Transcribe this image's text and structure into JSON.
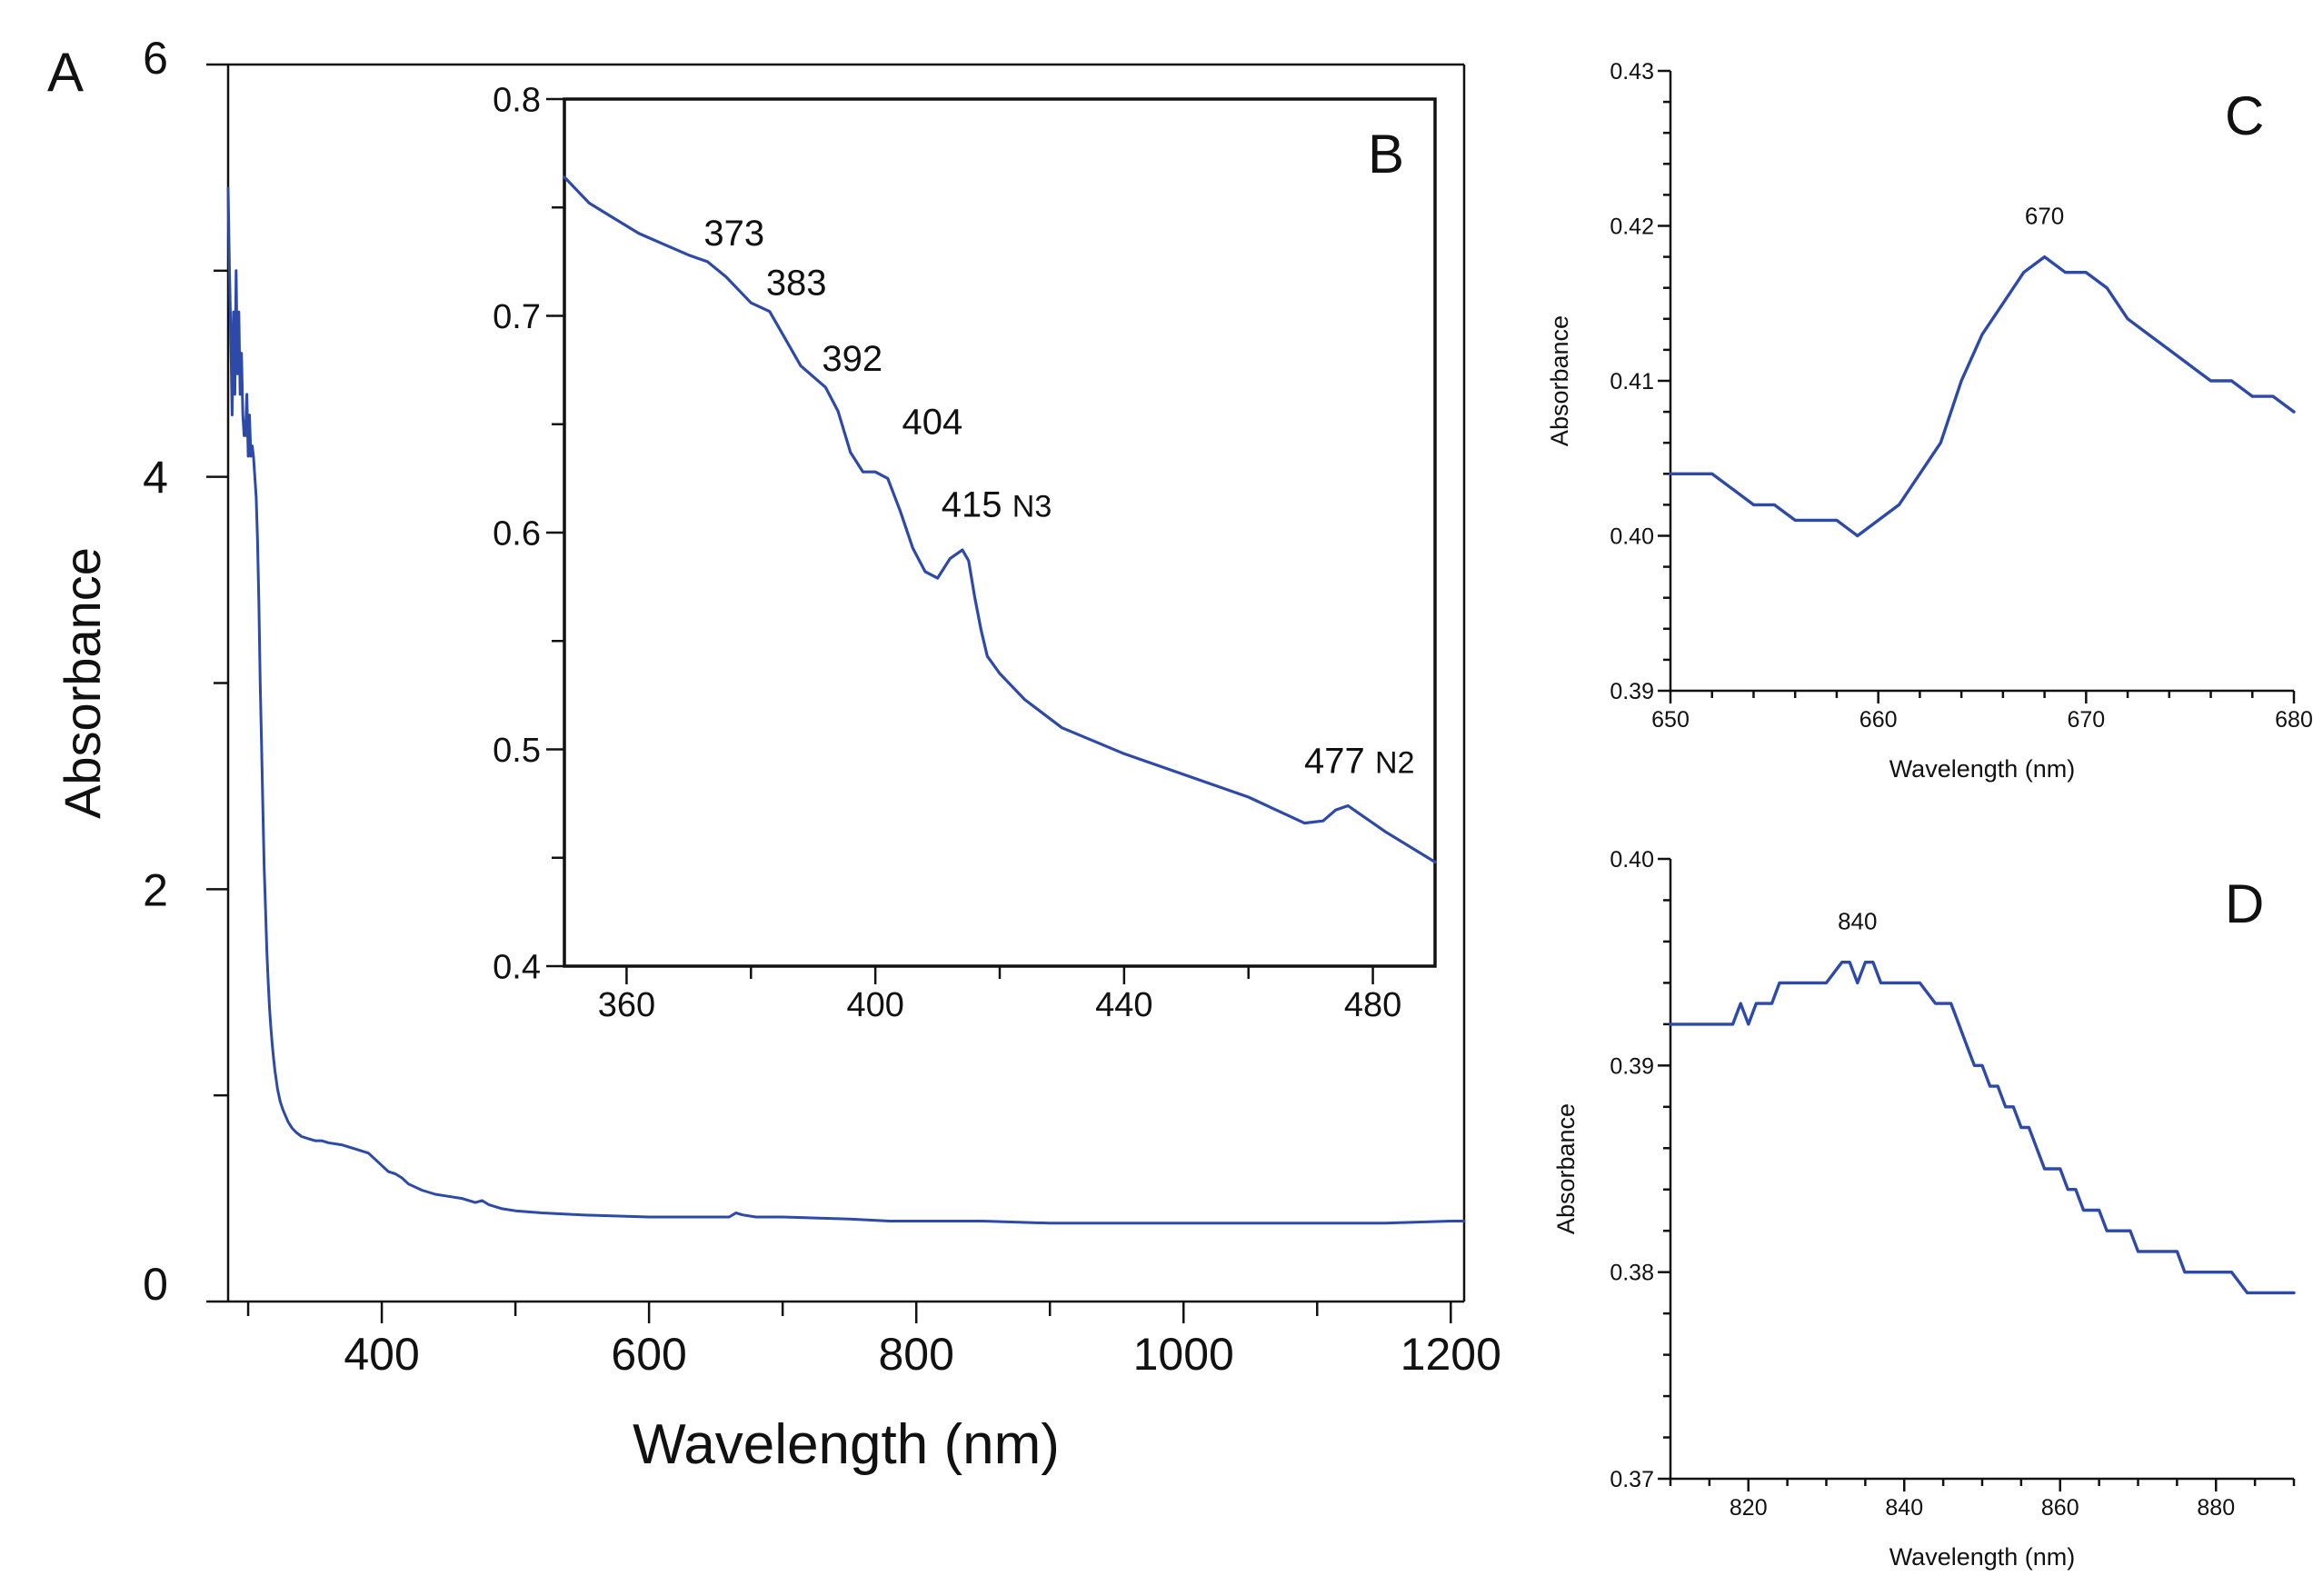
{
  "colors": {
    "series": "#2e4aa8",
    "axis": "#111111"
  },
  "chart_data": [
    {
      "id": "A",
      "type": "line",
      "panel_label": "A",
      "xlabel": "Wavelength (nm)",
      "ylabel": "Absorbance",
      "xlim": [
        285,
        1210
      ],
      "ylim": [
        0,
        6
      ],
      "xticks": [
        400,
        600,
        800,
        1000,
        1200
      ],
      "xminor": [
        300,
        500,
        700,
        900,
        1100
      ],
      "yticks": [
        0,
        2,
        4,
        6
      ],
      "yminor": [
        1,
        3,
        5
      ],
      "series": [
        {
          "name": "absorbance",
          "x": [
            285,
            286,
            287,
            288,
            289,
            290,
            291,
            292,
            293,
            294,
            295,
            296,
            297,
            298,
            299,
            300,
            301,
            302,
            303,
            304,
            305,
            306,
            307,
            308,
            309,
            310,
            311,
            312,
            313,
            314,
            315,
            316,
            317,
            318,
            319,
            320,
            322,
            324,
            326,
            328,
            330,
            333,
            336,
            340,
            345,
            350,
            355,
            360,
            370,
            380,
            390,
            400,
            405,
            410,
            415,
            420,
            430,
            440,
            450,
            460,
            470,
            475,
            480,
            490,
            500,
            520,
            550,
            600,
            650,
            660,
            665,
            670,
            680,
            700,
            750,
            780,
            800,
            850,
            900,
            1000,
            1100,
            1150,
            1200,
            1210
          ],
          "y": [
            5.4,
            5.0,
            4.7,
            4.3,
            4.8,
            4.4,
            5.0,
            4.5,
            4.8,
            4.4,
            4.6,
            4.3,
            4.2,
            4.2,
            4.4,
            4.1,
            4.3,
            4.1,
            4.15,
            4.1,
            4.0,
            3.9,
            3.7,
            3.4,
            3.0,
            2.7,
            2.4,
            2.1,
            1.9,
            1.7,
            1.55,
            1.42,
            1.33,
            1.25,
            1.18,
            1.12,
            1.03,
            0.97,
            0.93,
            0.9,
            0.87,
            0.84,
            0.82,
            0.8,
            0.79,
            0.78,
            0.78,
            0.77,
            0.76,
            0.74,
            0.72,
            0.66,
            0.63,
            0.62,
            0.6,
            0.57,
            0.54,
            0.52,
            0.51,
            0.5,
            0.48,
            0.49,
            0.47,
            0.45,
            0.44,
            0.43,
            0.42,
            0.41,
            0.41,
            0.41,
            0.43,
            0.42,
            0.41,
            0.41,
            0.4,
            0.39,
            0.39,
            0.39,
            0.38,
            0.38,
            0.38,
            0.38,
            0.39,
            0.39
          ]
        }
      ]
    },
    {
      "id": "B",
      "type": "line",
      "panel_label": "B",
      "xlabel": "",
      "ylabel": "",
      "xlim": [
        350,
        490
      ],
      "ylim": [
        0.4,
        0.8
      ],
      "xticks": [
        360,
        400,
        440,
        480
      ],
      "xminor": [
        380,
        420,
        460
      ],
      "yticks": [
        0.4,
        0.5,
        0.6,
        0.7,
        0.8
      ],
      "ytick_labels": [
        "0.4",
        "0.5",
        "0.6",
        "0.7",
        "0.8"
      ],
      "yminor": [
        0.45,
        0.55,
        0.65,
        0.75
      ],
      "series": [
        {
          "name": "absorbance",
          "x": [
            350,
            354,
            358,
            362,
            366,
            370,
            373,
            376,
            380,
            383,
            385,
            388,
            392,
            394,
            396,
            398,
            400,
            402,
            404,
            406,
            408,
            410,
            412,
            414,
            415,
            416,
            417,
            418,
            420,
            424,
            430,
            440,
            450,
            460,
            466,
            469,
            472,
            474,
            476,
            478,
            482,
            490
          ],
          "y": [
            0.764,
            0.752,
            0.745,
            0.738,
            0.733,
            0.728,
            0.725,
            0.718,
            0.706,
            0.702,
            0.692,
            0.677,
            0.667,
            0.656,
            0.637,
            0.628,
            0.628,
            0.625,
            0.61,
            0.593,
            0.582,
            0.579,
            0.588,
            0.592,
            0.587,
            0.57,
            0.555,
            0.543,
            0.535,
            0.523,
            0.51,
            0.498,
            0.488,
            0.478,
            0.47,
            0.466,
            0.467,
            0.472,
            0.474,
            0.47,
            0.462,
            0.448
          ]
        }
      ],
      "annotations": [
        {
          "x": 373,
          "y": 0.725,
          "text": "373"
        },
        {
          "x": 383,
          "y": 0.702,
          "text": "383"
        },
        {
          "x": 392,
          "y": 0.667,
          "text": "392"
        },
        {
          "x": 404,
          "y": 0.633,
          "text": "404"
        },
        {
          "x": 415,
          "y": 0.594,
          "text": "415",
          "suffix": "N3"
        },
        {
          "x": 477,
          "y": 0.474,
          "text": "477",
          "suffix": "N2"
        }
      ]
    },
    {
      "id": "C",
      "type": "line",
      "panel_label": "C",
      "xlabel": "Wavelength (nm)",
      "ylabel": "Absorbance",
      "xlim": [
        650,
        680
      ],
      "ylim": [
        0.39,
        0.43
      ],
      "xticks": [
        650,
        660,
        670,
        680
      ],
      "xminor": [
        652,
        654,
        656,
        658,
        662,
        664,
        666,
        668,
        672,
        674,
        676,
        678
      ],
      "yticks": [
        0.39,
        0.4,
        0.41,
        0.42,
        0.43
      ],
      "ytick_labels": [
        "0.39",
        "0.40",
        "0.41",
        "0.42",
        "0.43"
      ],
      "yminor": [
        0.392,
        0.394,
        0.396,
        0.398,
        0.402,
        0.404,
        0.406,
        0.408,
        0.412,
        0.414,
        0.416,
        0.418,
        0.422,
        0.424,
        0.426,
        0.428
      ],
      "series": [
        {
          "name": "absorbance",
          "x": [
            650,
            651,
            652,
            653,
            654,
            655,
            656,
            657,
            658,
            659,
            660,
            661,
            662,
            663,
            664,
            665,
            666,
            667,
            668,
            669,
            670,
            671,
            672,
            673,
            674,
            675,
            676,
            677,
            678,
            679,
            680
          ],
          "y": [
            0.404,
            0.404,
            0.404,
            0.403,
            0.402,
            0.402,
            0.401,
            0.401,
            0.401,
            0.4,
            0.401,
            0.402,
            0.404,
            0.406,
            0.41,
            0.413,
            0.415,
            0.417,
            0.418,
            0.417,
            0.417,
            0.416,
            0.414,
            0.413,
            0.412,
            0.411,
            0.41,
            0.41,
            0.409,
            0.409,
            0.408
          ]
        }
      ],
      "annotations": [
        {
          "x": 668,
          "y": 0.418,
          "text": "670"
        }
      ]
    },
    {
      "id": "D",
      "type": "line",
      "panel_label": "D",
      "xlabel": "Wavelength (nm)",
      "ylabel": "Absorbance",
      "xlim": [
        810,
        890
      ],
      "ylim": [
        0.37,
        0.4
      ],
      "xticks": [
        820,
        840,
        860,
        880
      ],
      "xminor": [
        810,
        815,
        825,
        830,
        835,
        845,
        850,
        855,
        865,
        870,
        875,
        885,
        890
      ],
      "yticks": [
        0.37,
        0.38,
        0.39,
        0.4
      ],
      "ytick_labels": [
        "0.37",
        "0.38",
        "0.39",
        "0.40"
      ],
      "yminor": [
        0.372,
        0.374,
        0.376,
        0.378,
        0.382,
        0.384,
        0.386,
        0.388,
        0.392,
        0.394,
        0.396,
        0.398
      ],
      "series": [
        {
          "name": "absorbance",
          "x": [
            810,
            812,
            814,
            816,
            818,
            819,
            820,
            821,
            822,
            823,
            824,
            825,
            826,
            828,
            830,
            832,
            833,
            834,
            835,
            836,
            837,
            838,
            840,
            842,
            844,
            846,
            847,
            848,
            849,
            850,
            851,
            852,
            853,
            854,
            855,
            856,
            857,
            858,
            859,
            860,
            861,
            862,
            863,
            864,
            865,
            866,
            867,
            868,
            869,
            870,
            871,
            872,
            873,
            874,
            875,
            876,
            877,
            878,
            879,
            880,
            882,
            884,
            885,
            886,
            888,
            890
          ],
          "y": [
            0.392,
            0.392,
            0.392,
            0.392,
            0.392,
            0.393,
            0.392,
            0.393,
            0.393,
            0.393,
            0.394,
            0.394,
            0.394,
            0.394,
            0.394,
            0.395,
            0.395,
            0.394,
            0.395,
            0.395,
            0.394,
            0.394,
            0.394,
            0.394,
            0.393,
            0.393,
            0.392,
            0.391,
            0.39,
            0.39,
            0.389,
            0.389,
            0.388,
            0.388,
            0.387,
            0.387,
            0.386,
            0.385,
            0.385,
            0.385,
            0.384,
            0.384,
            0.383,
            0.383,
            0.383,
            0.382,
            0.382,
            0.382,
            0.382,
            0.381,
            0.381,
            0.381,
            0.381,
            0.381,
            0.381,
            0.38,
            0.38,
            0.38,
            0.38,
            0.38,
            0.38,
            0.379,
            0.379,
            0.379,
            0.379,
            0.379
          ]
        }
      ],
      "annotations": [
        {
          "x": 834,
          "y": 0.395,
          "text": "840"
        }
      ]
    }
  ]
}
